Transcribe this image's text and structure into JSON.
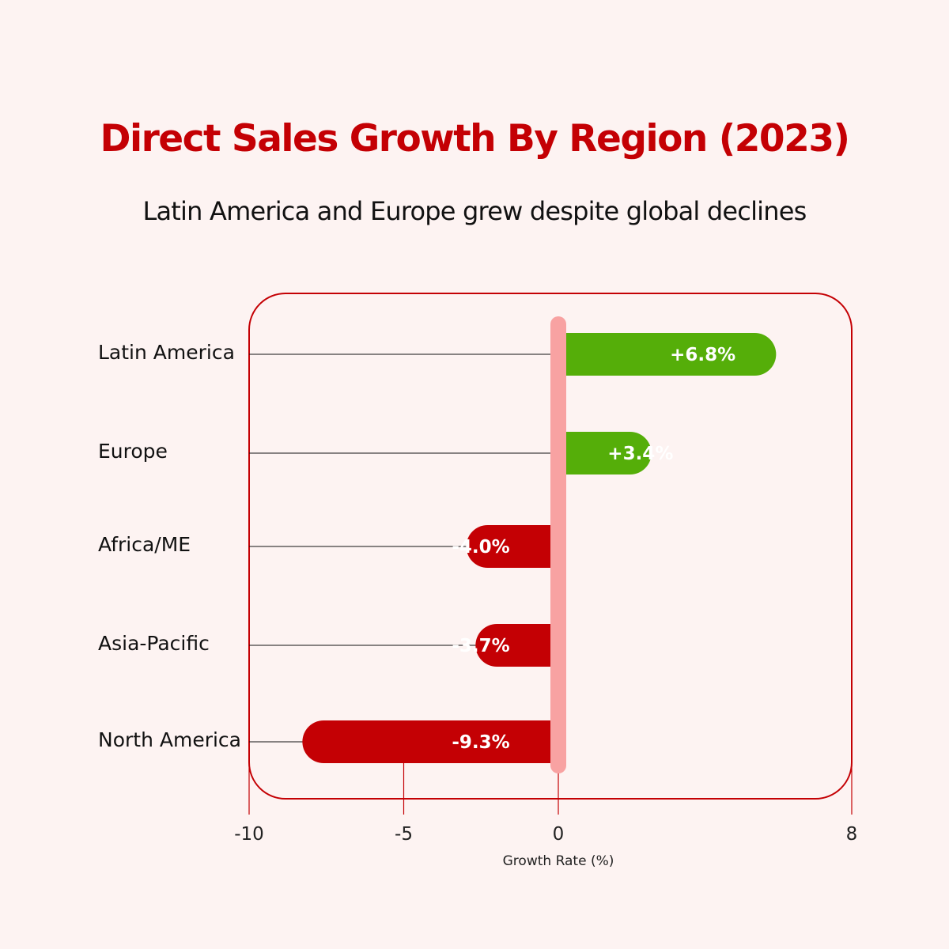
{
  "chart_data": {
    "type": "bar",
    "orientation": "horizontal",
    "title": "Direct Sales Growth By Region (2023)",
    "subtitle": "Latin America and Europe grew despite global declines",
    "xlabel": "Growth Rate (%)",
    "ylabel": "",
    "xlim": [
      -10,
      8
    ],
    "xticks": [
      -10,
      -5,
      0,
      8
    ],
    "xtick_labels": [
      "-10",
      "-5",
      "0",
      "8"
    ],
    "categories": [
      "Latin America",
      "Europe",
      "Africa/ME",
      "Asia-Pacific",
      "North America"
    ],
    "values": [
      6.8,
      3.4,
      -4.0,
      -3.7,
      -9.3
    ],
    "data_labels": [
      "+6.8%",
      "+3.4%",
      "-4.0%",
      "-3.7%",
      "-9.3%"
    ],
    "grid": false,
    "legend": "none"
  },
  "colors": {
    "title": "#c40004",
    "positive": "#55ae09",
    "negative": "#c40004",
    "zero_line": "#f8a2a2",
    "frame": "#c40004",
    "background": "#fdf3f2"
  }
}
